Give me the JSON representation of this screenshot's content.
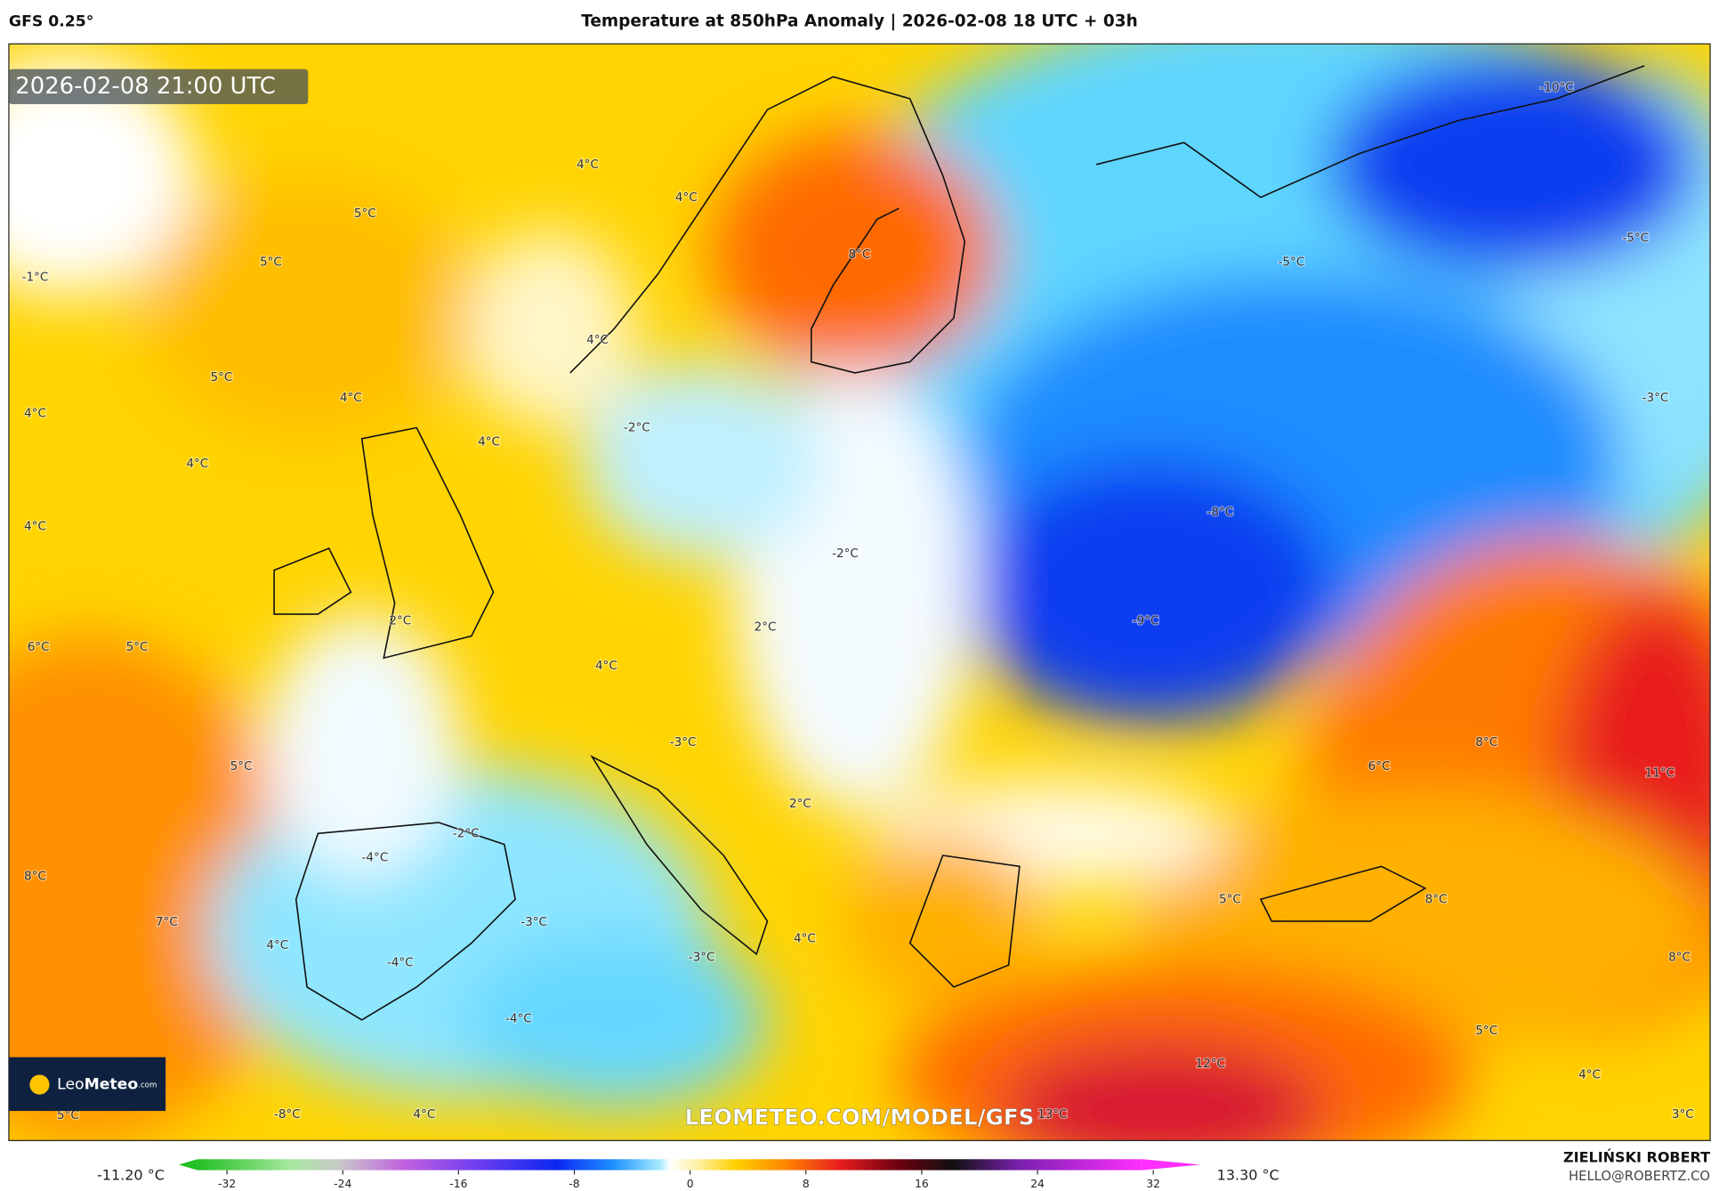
{
  "header": {
    "model": "GFS 0.25°",
    "title": "Temperature at 850hPa Anomaly | 2026-02-08 18 UTC + 03h"
  },
  "timestamp": "2026-02-08 21:00 UTC",
  "watermark": "LEOMETEO.COM/MODEL/GFS",
  "logo": {
    "brand_light": "Leo",
    "brand_bold": "Meteo",
    "suffix": ".com"
  },
  "map_labels": [
    "-10°C",
    "4°C",
    "4°C",
    "5°C",
    "5°C",
    "8°C",
    "-1°C",
    "-5°C",
    "-5°C",
    "4°C",
    "5°C",
    "4°C",
    "-2°C",
    "4°C",
    "4°C",
    "4°C",
    "-3°C",
    "-8°C",
    "4°C",
    "-2°C",
    "2°C",
    "2°C",
    "-9°C",
    "6°C",
    "5°C",
    "4°C",
    "-3°C",
    "8°C",
    "5°C",
    "6°C",
    "11°C",
    "2°C",
    "-2°C",
    "-4°C",
    "8°C",
    "5°C",
    "8°C",
    "7°C",
    "-3°C",
    "4°C",
    "4°C",
    "-4°C",
    "-3°C",
    "8°C",
    "-4°C",
    "5°C",
    "12°C",
    "4°C",
    "5°C",
    "-8°C",
    "4°C",
    "13°C",
    "3°C"
  ],
  "colorbar": {
    "min_label": "-11.20 °C",
    "max_label": "13.30 °C",
    "ticks": [
      -32,
      -24,
      -16,
      -8,
      0,
      8,
      16,
      24,
      32
    ]
  },
  "credit": {
    "name": "ZIELIŃSKI ROBERT",
    "email": "HELLO@ROBERTZ.CO"
  }
}
